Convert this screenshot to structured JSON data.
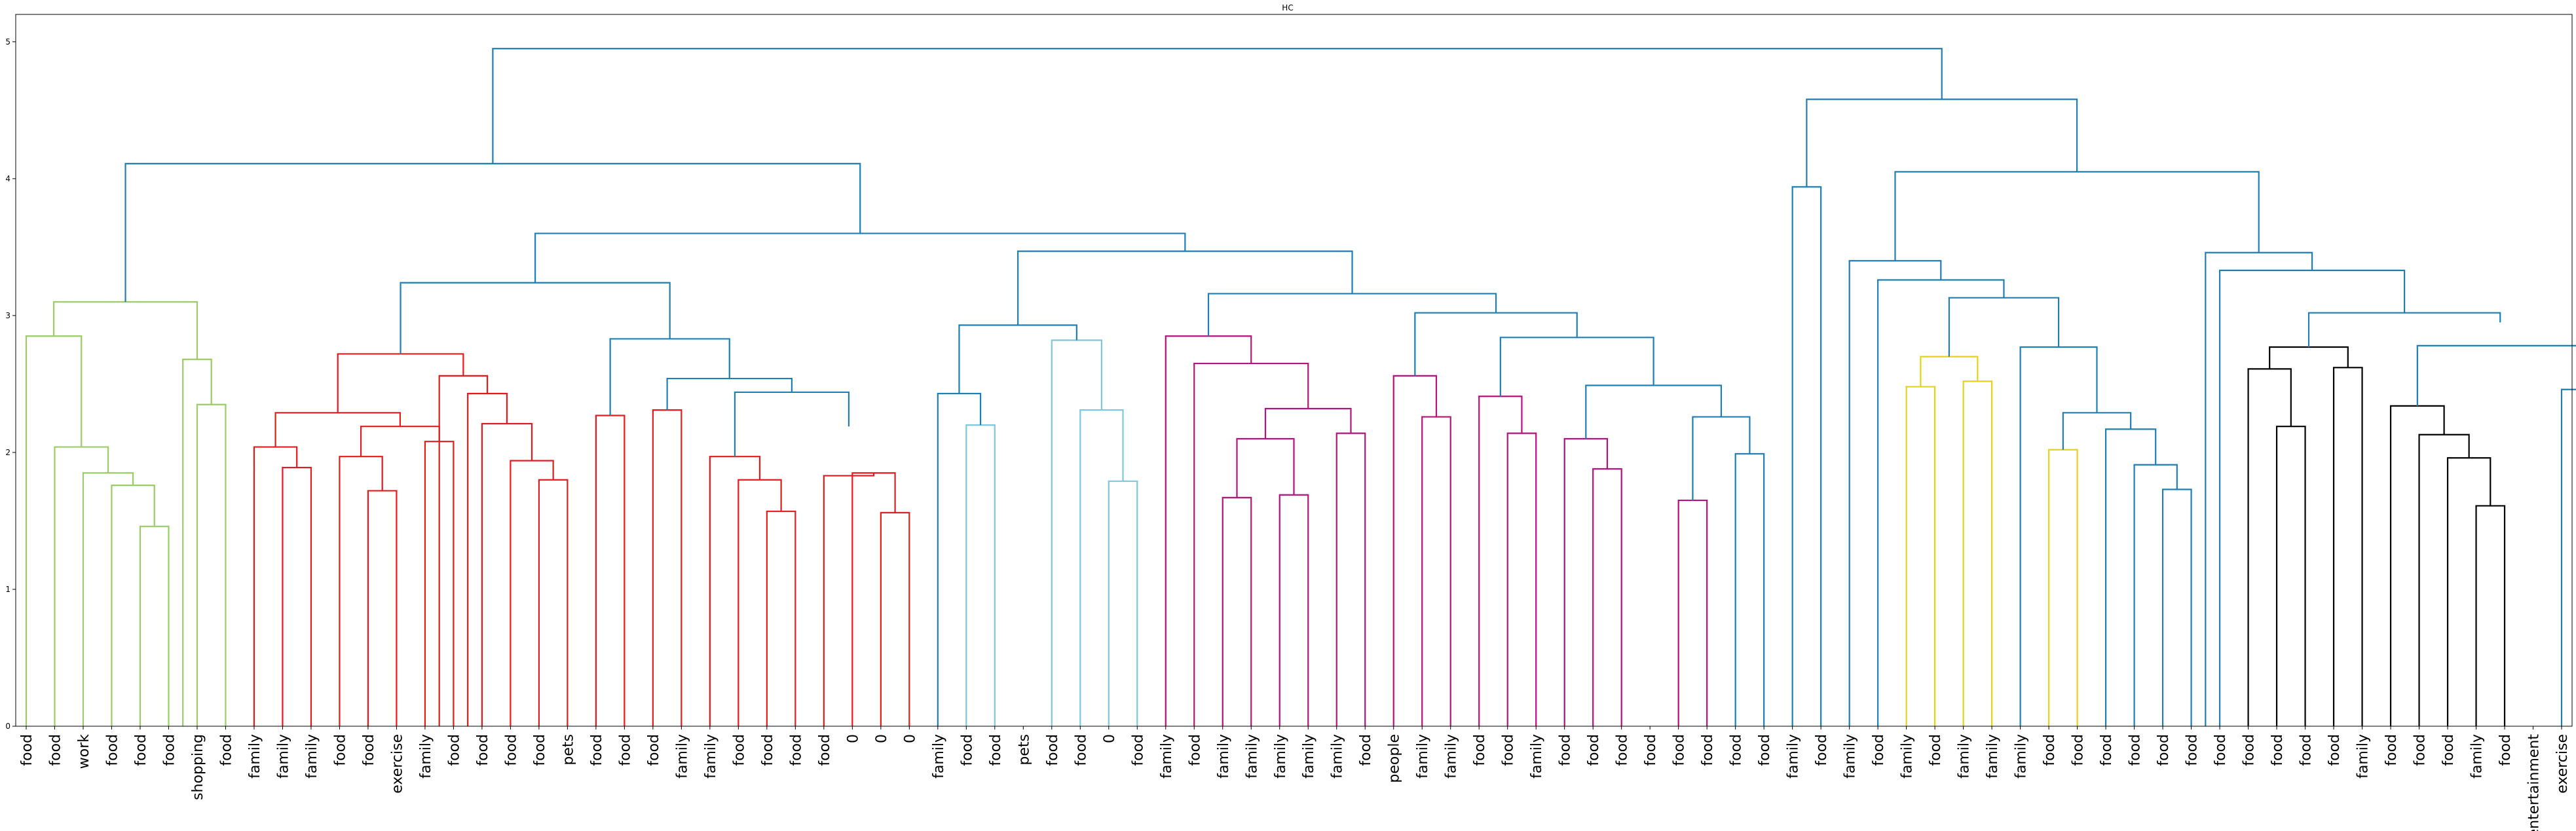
{
  "chart_data": {
    "type": "dendrogram",
    "title": "HC",
    "xlabel": "",
    "ylabel": "",
    "ylim": [
      0,
      5.2
    ],
    "yticks": [
      "0",
      "1",
      "2",
      "3",
      "4",
      "5"
    ],
    "grid": false,
    "leaves": [
      "food",
      "food",
      "work",
      "food",
      "food",
      "food",
      "shopping",
      "food",
      "family",
      "family",
      "family",
      "food",
      "food",
      "exercise",
      "family",
      "food",
      "food",
      "food",
      "food",
      "pets",
      "food",
      "food",
      "food",
      "family",
      "family",
      "food",
      "food",
      "food",
      "food",
      "0",
      "0",
      "0",
      "family",
      "food",
      "food",
      "pets",
      "food",
      "food",
      "0",
      "food",
      "family",
      "food",
      "family",
      "family",
      "family",
      "family",
      "family",
      "food",
      "people",
      "family",
      "family",
      "food",
      "food",
      "family",
      "food",
      "food",
      "food",
      "food",
      "food",
      "food",
      "food",
      "food",
      "family",
      "food",
      "family",
      "food",
      "family",
      "food",
      "family",
      "family",
      "family",
      "food",
      "food",
      "food",
      "food",
      "food",
      "food",
      "food",
      "food",
      "food",
      "food",
      "food",
      "family",
      "food",
      "food",
      "food",
      "family",
      "food",
      "entertainment",
      "exercise"
    ],
    "clusters": [
      {
        "color": "#9acd65",
        "count": 8
      },
      {
        "color": "#e41a1c",
        "count": 25
      },
      {
        "color": "#7ec8dc",
        "count": 7
      },
      {
        "color": "#b5127a",
        "count": 21
      },
      {
        "color": "#1f7fb4",
        "count": 2
      },
      {
        "color": "#e6d21a",
        "count": 13
      },
      {
        "color": "#000000",
        "count": 14
      }
    ],
    "link_colors": {
      "above_threshold": "#1f7fb4"
    },
    "merges": [
      {
        "a": 4,
        "b": 5,
        "height": 1.46
      },
      {
        "a": 3,
        "b": "m0",
        "height": 1.76
      },
      {
        "a": 2,
        "b": "m1",
        "height": 1.85
      },
      {
        "a": 1,
        "b": "m2",
        "height": 2.04
      },
      {
        "a": 0,
        "b": "m3",
        "height": 2.85
      },
      {
        "a": 6,
        "b": 7,
        "height": 2.35
      },
      {
        "a": 5.5,
        "b": "m5",
        "height": 2.68
      },
      {
        "a": "m4",
        "b": "m6",
        "height": 3.1
      },
      {
        "a": 9,
        "b": 10,
        "height": 1.89
      },
      {
        "a": 8,
        "b": "m8",
        "height": 2.04
      },
      {
        "a": 12,
        "b": 13,
        "height": 1.72
      },
      {
        "a": 11,
        "b": "m10",
        "height": 1.97
      },
      {
        "a": 14,
        "b": 15,
        "height": 2.08
      },
      {
        "a": "m11",
        "b": "m12",
        "height": 2.19
      },
      {
        "a": "m9",
        "b": "m13",
        "height": 2.29
      },
      {
        "a": 18,
        "b": 19,
        "height": 1.8
      },
      {
        "a": 17,
        "b": "m15",
        "height": 1.94
      },
      {
        "a": 16,
        "b": "m16",
        "height": 2.21
      },
      {
        "a": 15.5,
        "b": "m17",
        "height": 2.43
      },
      {
        "a": 14.5,
        "b": "m18",
        "height": 2.56
      },
      {
        "a": "m14",
        "b": "m19",
        "height": 2.72
      },
      {
        "a": 20,
        "b": 21,
        "height": 2.27
      },
      {
        "a": 22,
        "b": 23,
        "height": 2.31
      },
      {
        "a": 26,
        "b": 27,
        "height": 1.57
      },
      {
        "a": 25,
        "b": "m23",
        "height": 1.8
      },
      {
        "a": 24,
        "b": "m24",
        "height": 1.97
      },
      {
        "a": 30,
        "b": 31,
        "height": 1.56
      },
      {
        "a": 29,
        "b": "m26",
        "height": 1.85
      },
      {
        "a": 28,
        "b": "m27",
        "height": 1.83
      },
      {
        "a": "m28",
        "b": "m27b",
        "height": 2.19
      },
      {
        "a": "m25",
        "b": "m29",
        "height": 2.44
      },
      {
        "a": "m22",
        "b": "m30",
        "height": 2.54
      },
      {
        "a": "m21",
        "b": "m31",
        "height": 2.83
      },
      {
        "a": "m20",
        "b": "m32",
        "height": 3.24
      },
      {
        "a": 33,
        "b": 34,
        "height": 2.2
      },
      {
        "a": 32,
        "b": "m34",
        "height": 2.43
      },
      {
        "a": 38,
        "b": 39,
        "height": 1.79
      },
      {
        "a": 37,
        "b": "m36",
        "height": 2.31
      },
      {
        "a": 36,
        "b": "m37",
        "height": 2.82
      },
      {
        "a": "m35",
        "b": "m38",
        "height": 2.93
      },
      {
        "a": 42,
        "b": 43,
        "height": 1.67
      },
      {
        "a": 44,
        "b": 45,
        "height": 1.69
      },
      {
        "a": "m40",
        "b": "m41",
        "height": 2.1
      },
      {
        "a": 46,
        "b": 47,
        "height": 2.14
      },
      {
        "a": "m42",
        "b": "m43",
        "height": 2.32
      },
      {
        "a": 41,
        "b": "m44",
        "height": 2.65
      },
      {
        "a": 40,
        "b": "m45",
        "height": 2.85
      },
      {
        "a": 49,
        "b": 50,
        "height": 2.26
      },
      {
        "a": 48,
        "b": "m47",
        "height": 2.56
      },
      {
        "a": 52,
        "b": 53,
        "height": 2.14
      },
      {
        "a": 51,
        "b": "m49",
        "height": 2.41
      },
      {
        "a": 55,
        "b": 56,
        "height": 1.88
      },
      {
        "a": 54,
        "b": "m51",
        "height": 2.1
      },
      {
        "a": 58,
        "b": 59,
        "height": 1.65
      },
      {
        "a": 60,
        "b": 61,
        "height": 1.99
      },
      {
        "a": "m53",
        "b": "m54",
        "height": 2.26
      },
      {
        "a": "m52",
        "b": "m55",
        "height": 2.49
      },
      {
        "a": "m50",
        "b": "m56",
        "height": 2.84
      },
      {
        "a": "m48",
        "b": "m57",
        "height": 3.02
      },
      {
        "a": "m46",
        "b": "m58",
        "height": 3.16
      },
      {
        "a": "m39",
        "b": "m59",
        "height": 3.47
      },
      {
        "a": "m33",
        "b": "m60",
        "height": 3.6
      },
      {
        "a": "m7",
        "b": "m61",
        "height": 4.11
      },
      {
        "a": 62,
        "b": 63,
        "height": 3.94
      },
      {
        "a": 66,
        "b": 67,
        "height": 2.48
      },
      {
        "a": 68,
        "b": 69,
        "height": 2.52
      },
      {
        "a": "m64",
        "b": "m65",
        "height": 2.7
      },
      {
        "a": 71,
        "b": 72,
        "height": 2.02
      },
      {
        "a": 75,
        "b": 76,
        "height": 1.73
      },
      {
        "a": 74,
        "b": "m68",
        "height": 1.91
      },
      {
        "a": 73,
        "b": "m69",
        "height": 2.17
      },
      {
        "a": "m67",
        "b": "m70",
        "height": 2.29
      },
      {
        "a": 70,
        "b": "m71",
        "height": 2.77
      },
      {
        "a": "m66",
        "b": "m72",
        "height": 3.13
      },
      {
        "a": 65,
        "b": "m73",
        "height": 3.26
      },
      {
        "a": 64,
        "b": "m74",
        "height": 3.4
      },
      {
        "a": 79,
        "b": 80,
        "height": 2.19
      },
      {
        "a": 78,
        "b": "m76",
        "height": 2.61
      },
      {
        "a": 81,
        "b": 82,
        "height": 2.62
      },
      {
        "a": "m77",
        "b": "m78",
        "height": 2.77
      },
      {
        "a": 86,
        "b": 87,
        "height": 1.61
      },
      {
        "a": 85,
        "b": "m80",
        "height": 1.96
      },
      {
        "a": 84,
        "b": "m81",
        "height": 2.13
      },
      {
        "a": 83,
        "b": "m82",
        "height": 2.34
      },
      {
        "a": 90,
        "b": 91,
        "height": 2.24
      },
      {
        "a": 89,
        "b": "m84",
        "height": 2.46
      },
      {
        "a": "m83",
        "b": "m85",
        "height": 2.78
      },
      {
        "a": "m83b",
        "b": "m86",
        "height": 2.95
      },
      {
        "a": "m79",
        "b": "m87",
        "height": 3.02
      },
      {
        "a": 77,
        "b": "m88",
        "height": 3.33
      },
      {
        "a": 76.5,
        "b": "m89",
        "height": 3.46
      },
      {
        "a": "m75",
        "b": "m90",
        "height": 4.05
      },
      {
        "a": "m63",
        "b": "m91",
        "height": 4.58
      },
      {
        "a": "m62",
        "b": "m92",
        "height": 4.95
      }
    ]
  }
}
